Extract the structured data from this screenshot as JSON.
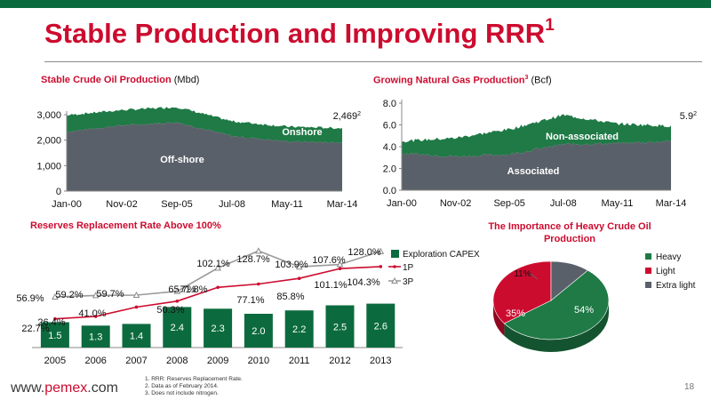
{
  "slide": {
    "title": "Stable Production and Improving RRR",
    "title_sup": "1",
    "page_number": "18",
    "footer_url_prefix": "www.",
    "footer_url_domain": "pemex",
    "footer_url_suffix": ".com",
    "notes": [
      "1.   RRR: Reserves Replacement Rate.",
      "2.   Data as of February 2014.",
      "3.   Does not include nitrogen."
    ],
    "colors": {
      "brand_green": "#0c6b3e",
      "brand_red": "#cc0c2f",
      "dark_gray": "#5a6069",
      "series_green": "#1f7a46"
    }
  },
  "chart_data": [
    {
      "type": "area",
      "title": "Stable Crude Oil Production",
      "unit": "(Mbd)",
      "x_ticks": [
        "Jan-00",
        "Nov-02",
        "Sep-05",
        "Jul-08",
        "May-11",
        "Mar-14"
      ],
      "ylim": [
        0,
        3000
      ],
      "y_ticks": [
        0,
        1000,
        2000,
        3000
      ],
      "y_tick_labels": [
        "0",
        "1,000",
        "2,000",
        "3,000"
      ],
      "series": [
        {
          "name": "Off-shore",
          "x": [
            "Jan-00",
            "Nov-02",
            "Sep-05",
            "Jul-08",
            "May-11",
            "Mar-14"
          ],
          "values": [
            2330,
            2580,
            2700,
            2160,
            1950,
            1900
          ]
        },
        {
          "name": "Onshore",
          "x": [
            "Jan-00",
            "Nov-02",
            "Sep-05",
            "Jul-08",
            "May-11",
            "Mar-14"
          ],
          "values": [
            650,
            600,
            600,
            580,
            580,
            570
          ]
        }
      ],
      "end_label": "2,469",
      "end_label_sup": "2"
    },
    {
      "type": "area",
      "title": "Growing Natural Gas Production",
      "title_sup": "3",
      "unit": "(Bcf)",
      "x_ticks": [
        "Jan-00",
        "Nov-02",
        "Sep-05",
        "Jul-08",
        "May-11",
        "Mar-14"
      ],
      "ylim": [
        0,
        8
      ],
      "y_ticks": [
        0,
        2,
        4,
        6,
        8
      ],
      "y_tick_labels": [
        "0.0",
        "2.0",
        "4.0",
        "6.0",
        "8.0"
      ],
      "series": [
        {
          "name": "Associated",
          "x": [
            "Jan-00",
            "Nov-02",
            "Sep-05",
            "Jul-08",
            "May-11",
            "Mar-14"
          ],
          "values": [
            3.4,
            3.1,
            3.3,
            4.2,
            4.3,
            4.5
          ]
        },
        {
          "name": "Non-associated",
          "x": [
            "Jan-00",
            "Nov-02",
            "Sep-05",
            "Jul-08",
            "May-11",
            "Mar-14"
          ],
          "values": [
            1.1,
            1.7,
            2.3,
            2.7,
            1.8,
            1.4
          ]
        }
      ],
      "end_label": "5.9",
      "end_label_sup": "2"
    },
    {
      "type": "bar",
      "title": "Reserves Replacement Rate Above 100%",
      "categories": [
        "2005",
        "2006",
        "2007",
        "2008",
        "2009",
        "2010",
        "2011",
        "2012",
        "2013"
      ],
      "series": [
        {
          "name": "Exploration CAPEX",
          "kind": "bar",
          "values": [
            1.5,
            1.3,
            1.4,
            2.4,
            2.3,
            2.0,
            2.2,
            2.5,
            2.6
          ],
          "labels": [
            "1.5",
            "1.3",
            "1.4",
            "2.4",
            "2.3",
            "2.0",
            "2.2",
            "2.5",
            "2.6"
          ]
        },
        {
          "name": "1P",
          "kind": "line",
          "values": [
            22.7,
            26.4,
            41.0,
            50.3,
            71.8,
            77.1,
            85.8,
            101.1,
            104.3
          ],
          "labels": [
            "22.7%",
            "26.4%",
            "41.0%",
            "50.3%",
            "71.8%",
            "77.1%",
            "85.8%",
            "101.1%",
            "104.3%"
          ]
        },
        {
          "name": "3P",
          "kind": "line",
          "values": [
            56.9,
            59.2,
            59.7,
            65.7,
            102.1,
            128.7,
            103.9,
            107.6,
            128.0
          ],
          "labels": [
            "56.9%",
            "59.2%",
            "59.7%",
            "65.7%",
            "102.1%",
            "128.7%",
            "103.9%",
            "107.6%",
            "128.0%"
          ]
        }
      ],
      "legend": "right"
    },
    {
      "type": "pie",
      "title": "The Importance of Heavy Crude Oil Production",
      "labels": [
        "Heavy",
        "Light",
        "Extra light"
      ],
      "values": [
        54,
        35,
        11
      ],
      "value_labels": [
        "54%",
        "35%",
        "11%"
      ],
      "colors": [
        "#1f7a46",
        "#cc0c2f",
        "#5a6069"
      ],
      "legend": "right"
    }
  ]
}
